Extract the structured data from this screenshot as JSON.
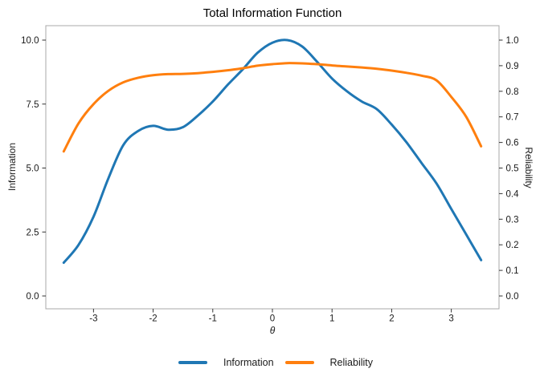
{
  "chart_data": {
    "type": "line",
    "title": "Total Information Function",
    "xlabel": "θ",
    "xlim": [
      -3.8,
      3.8
    ],
    "x_tick_labels": [
      "-3",
      "-2",
      "-1",
      "0",
      "1",
      "2",
      "3"
    ],
    "x_tick_values": [
      -3,
      -2,
      -1,
      0,
      1,
      2,
      3
    ],
    "left_axis": {
      "label": "Information",
      "range": [
        0,
        10
      ],
      "ticks": [
        "0.0",
        "2.5",
        "5.0",
        "7.5",
        "10.0"
      ],
      "tick_values": [
        0,
        2.5,
        5,
        7.5,
        10
      ]
    },
    "right_axis": {
      "label": "Reliability",
      "range": [
        0,
        1
      ],
      "ticks": [
        "0.0",
        "0.1",
        "0.2",
        "0.3",
        "0.4",
        "0.5",
        "0.6",
        "0.7",
        "0.8",
        "0.9",
        "1.0"
      ],
      "tick_values": [
        0,
        0.1,
        0.2,
        0.3,
        0.4,
        0.5,
        0.6,
        0.7,
        0.8,
        0.9,
        1.0
      ]
    },
    "x": [
      -3.5,
      -3.25,
      -3.0,
      -2.75,
      -2.5,
      -2.25,
      -2.0,
      -1.75,
      -1.5,
      -1.25,
      -1.0,
      -0.75,
      -0.5,
      -0.25,
      0.0,
      0.25,
      0.5,
      0.75,
      1.0,
      1.25,
      1.5,
      1.75,
      2.0,
      2.25,
      2.5,
      2.75,
      3.0,
      3.25,
      3.5
    ],
    "series": [
      {
        "name": "Information",
        "axis": "left",
        "color": "#1f77b4",
        "values": [
          1.3,
          2.0,
          3.1,
          4.6,
          5.9,
          6.45,
          6.65,
          6.5,
          6.6,
          7.05,
          7.6,
          8.25,
          8.85,
          9.5,
          9.9,
          10.0,
          9.75,
          9.15,
          8.5,
          8.0,
          7.6,
          7.3,
          6.7,
          6.0,
          5.2,
          4.4,
          3.4,
          2.4,
          1.4
        ]
      },
      {
        "name": "Reliability",
        "axis": "right",
        "color": "#ff7f0e",
        "values": [
          0.565,
          0.675,
          0.75,
          0.802,
          0.835,
          0.853,
          0.863,
          0.867,
          0.868,
          0.871,
          0.876,
          0.882,
          0.89,
          0.9,
          0.906,
          0.91,
          0.909,
          0.906,
          0.901,
          0.897,
          0.893,
          0.888,
          0.881,
          0.872,
          0.861,
          0.843,
          0.778,
          0.7,
          0.585
        ]
      }
    ],
    "legend": {
      "position": "bottom",
      "entries": [
        {
          "label": "Information",
          "color": "#1f77b4"
        },
        {
          "label": "Reliability",
          "color": "#ff7f0e"
        }
      ]
    },
    "style": {
      "panel_border_color": "#a8a8a8",
      "tick_color": "#333333",
      "tick_label_color": "#1a1a1a",
      "background": "#ffffff"
    }
  }
}
